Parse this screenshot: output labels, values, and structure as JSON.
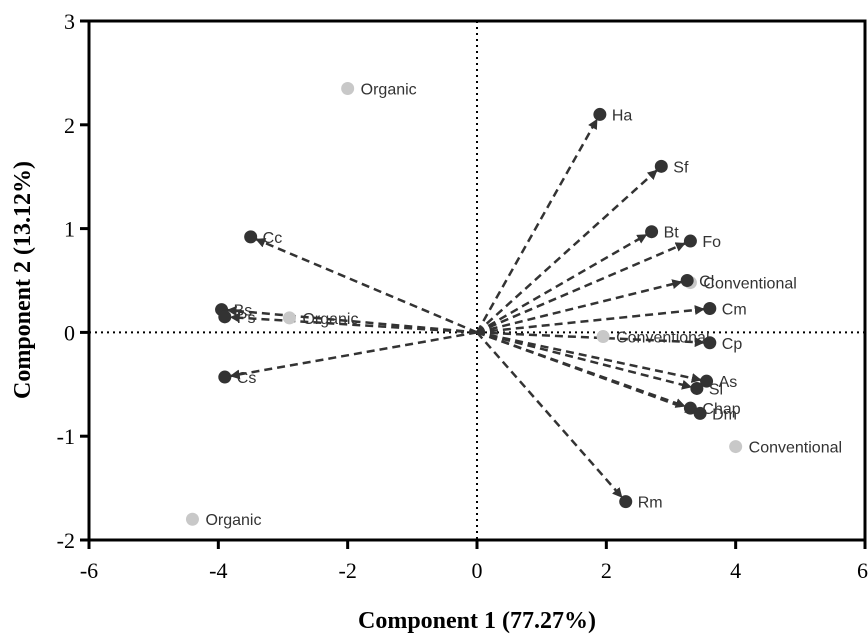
{
  "chart_data": {
    "type": "scatter",
    "xlabel": "Component 1 (77.27%)",
    "ylabel": "Component 2 (13.12%)",
    "xlim": [
      -6,
      6
    ],
    "ylim": [
      -2,
      3
    ],
    "xticks": [
      -6,
      -4,
      -2,
      0,
      2,
      4,
      6
    ],
    "yticks": [
      -2,
      -1,
      0,
      1,
      2,
      3
    ],
    "grid": false,
    "reference_lines": "dotted lines at x = 0 and y = 0",
    "colors": {
      "loading": "#333333",
      "score": "#c8c8c8",
      "arrow": "#333333",
      "score_text": "#333333"
    },
    "loadings": [
      {
        "label": "Ha",
        "x": 1.9,
        "y": 2.1
      },
      {
        "label": "Sf",
        "x": 2.85,
        "y": 1.6
      },
      {
        "label": "Bt",
        "x": 2.7,
        "y": 0.97
      },
      {
        "label": "Fo",
        "x": 3.3,
        "y": 0.88
      },
      {
        "label": "Cl",
        "x": 3.25,
        "y": 0.5
      },
      {
        "label": "Cm",
        "x": 3.6,
        "y": 0.23
      },
      {
        "label": "Cp",
        "x": 3.6,
        "y": -0.1
      },
      {
        "label": "As",
        "x": 3.55,
        "y": -0.47
      },
      {
        "label": "Sl",
        "x": 3.4,
        "y": -0.54
      },
      {
        "label": "Chap",
        "x": 3.3,
        "y": -0.73
      },
      {
        "label": "Dm",
        "x": 3.45,
        "y": -0.78
      },
      {
        "label": "Rm",
        "x": 2.3,
        "y": -1.63
      },
      {
        "label": "Cc",
        "x": -3.5,
        "y": 0.92
      },
      {
        "label": "Bs",
        "x": -3.95,
        "y": 0.22
      },
      {
        "label": "Ps",
        "x": -3.9,
        "y": 0.15
      },
      {
        "label": "Cs",
        "x": -3.9,
        "y": -0.43
      }
    ],
    "scores": [
      {
        "label": "Organic",
        "x": -2.0,
        "y": 2.35
      },
      {
        "label": "Organic",
        "x": -2.9,
        "y": 0.14
      },
      {
        "label": "Organic",
        "x": -4.4,
        "y": -1.8
      },
      {
        "label": "Conventional",
        "x": 3.3,
        "y": 0.48
      },
      {
        "label": "Conventional",
        "x": 1.95,
        "y": -0.04
      },
      {
        "label": "Conventional",
        "x": 4.0,
        "y": -1.1
      }
    ]
  }
}
